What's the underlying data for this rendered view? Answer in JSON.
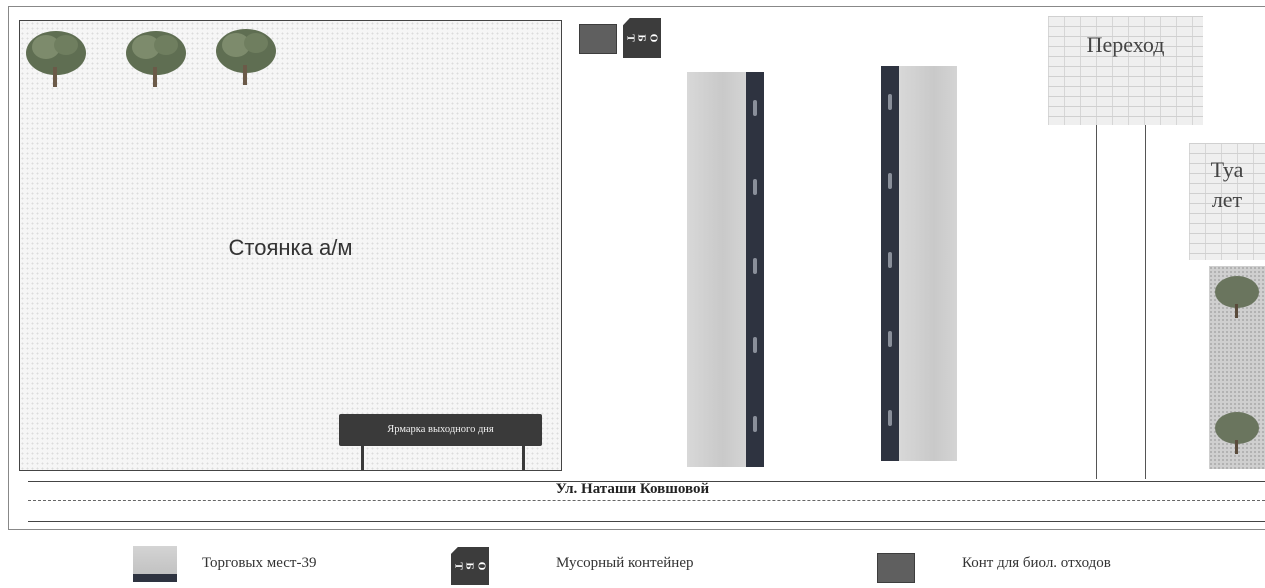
{
  "map": {
    "parking_label": "Стоянка а/м",
    "fair_sign": "Ярмарка выходного дня",
    "crossing_label": "Переход",
    "toilet_label_1": "Туа",
    "toilet_label_2": "лет",
    "street_name": "Ул. Наташи Ковшовой",
    "tbo_letters": [
      "Т",
      "Б",
      "О"
    ]
  },
  "legend": {
    "stalls": "Торговых мест-39",
    "trash": "Мусорный контейнер",
    "bio": "Конт для биол. отходов"
  },
  "colors": {
    "stall_dark": "#2e3340",
    "tbo": "#3c3c3c",
    "bio": "#5f5f5f",
    "fair_sign": "#3a3a3a"
  }
}
